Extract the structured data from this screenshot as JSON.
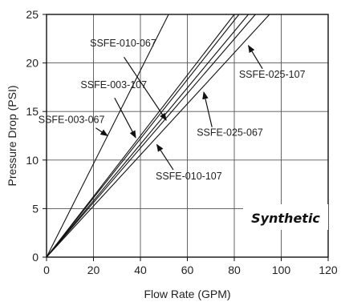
{
  "chart_data": {
    "type": "line",
    "title": "",
    "xlabel": "Flow Rate (GPM)",
    "ylabel": "Pressure Drop (PSI)",
    "xlim": [
      0,
      120
    ],
    "ylim": [
      0,
      25
    ],
    "xticks": [
      0,
      20,
      40,
      60,
      80,
      100,
      120
    ],
    "yticks": [
      0,
      5,
      10,
      15,
      20,
      25
    ],
    "grid": true,
    "series": [
      {
        "name": "SSFE-003-067",
        "x": [
          0,
          52
        ],
        "y": [
          0,
          25
        ]
      },
      {
        "name": "SSFE-003-107",
        "x": [
          0,
          80
        ],
        "y": [
          0,
          25
        ]
      },
      {
        "name": "SSFE-010-067",
        "x": [
          0,
          82
        ],
        "y": [
          0,
          25
        ]
      },
      {
        "name": "SSFE-010-107",
        "x": [
          0,
          86
        ],
        "y": [
          0,
          25
        ]
      },
      {
        "name": "SSFE-025-067",
        "x": [
          0,
          89
        ],
        "y": [
          0,
          25
        ]
      },
      {
        "name": "SSFE-025-107",
        "x": [
          0,
          95
        ],
        "y": [
          0,
          25
        ]
      }
    ],
    "annotations": [
      {
        "series": "SSFE-010-067",
        "text": "SSFE-010-067",
        "text_x": 18.5,
        "text_y": 21.7,
        "arrow_x": 51,
        "arrow_y": 14.1
      },
      {
        "series": "SSFE-003-107",
        "text": "SSFE-003-107",
        "text_x": 14.5,
        "text_y": 17.4,
        "arrow_x": 38,
        "arrow_y": 12.3
      },
      {
        "series": "SSFE-003-067",
        "text": "SSFE-003-067",
        "text_x": -3.5,
        "text_y": 13.8,
        "arrow_x": 26,
        "arrow_y": 12.5
      },
      {
        "series": "SSFE-025-067",
        "text": "SSFE-025-067",
        "text_x": 64,
        "text_y": 12.5,
        "arrow_x": 67,
        "arrow_y": 17
      },
      {
        "series": "SSFE-025-107",
        "text": "SSFE-025-107",
        "text_x": 82,
        "text_y": 18.5,
        "arrow_x": 86,
        "arrow_y": 21.8
      },
      {
        "series": "SSFE-010-107",
        "text": "SSFE-010-107",
        "text_x": 46.5,
        "text_y": 8.0,
        "arrow_x": 47,
        "arrow_y": 11.6
      }
    ]
  },
  "badge": {
    "text": "Synthetic"
  }
}
